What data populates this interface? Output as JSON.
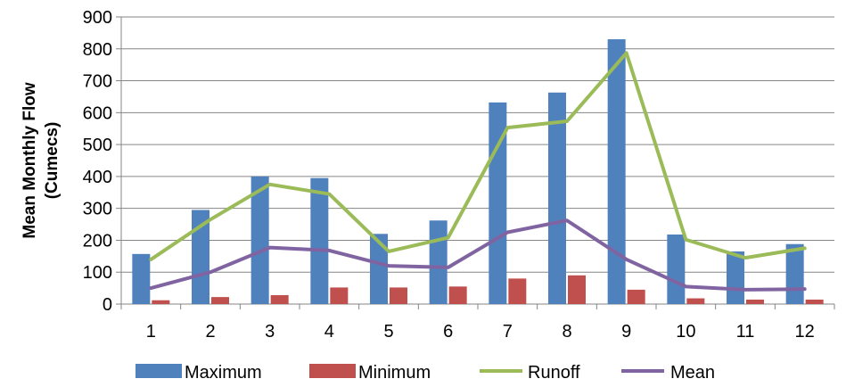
{
  "chart_data": {
    "type": "bar",
    "title": "",
    "xlabel": "",
    "ylabel": "Mean Monthly Flow (Cumecs)",
    "ylabel_lines": [
      "Mean Monthly Flow",
      "(Cumecs)"
    ],
    "ylim": [
      0,
      900
    ],
    "yticks": [
      0,
      100,
      200,
      300,
      400,
      500,
      600,
      700,
      800,
      900
    ],
    "grid": "horizontal",
    "legend_position": "bottom",
    "categories": [
      "1",
      "2",
      "3",
      "4",
      "5",
      "6",
      "7",
      "8",
      "9",
      "10",
      "11",
      "12"
    ],
    "bar_series": [
      {
        "name": "Maximum",
        "color": "#4F81BD",
        "values": [
          157,
          295,
          400,
          395,
          220,
          262,
          632,
          663,
          830,
          218,
          165,
          188
        ]
      },
      {
        "name": "Minimum",
        "color": "#C0504D",
        "values": [
          12,
          22,
          28,
          52,
          52,
          55,
          80,
          90,
          45,
          18,
          14,
          14
        ]
      }
    ],
    "line_series": [
      {
        "name": "Runoff",
        "color": "#9BBB59",
        "values": [
          140,
          265,
          375,
          345,
          165,
          208,
          553,
          573,
          787,
          202,
          145,
          175
        ]
      },
      {
        "name": "Mean",
        "color": "#8064A2",
        "values": [
          50,
          100,
          177,
          168,
          120,
          115,
          225,
          262,
          140,
          55,
          45,
          47
        ]
      }
    ]
  }
}
